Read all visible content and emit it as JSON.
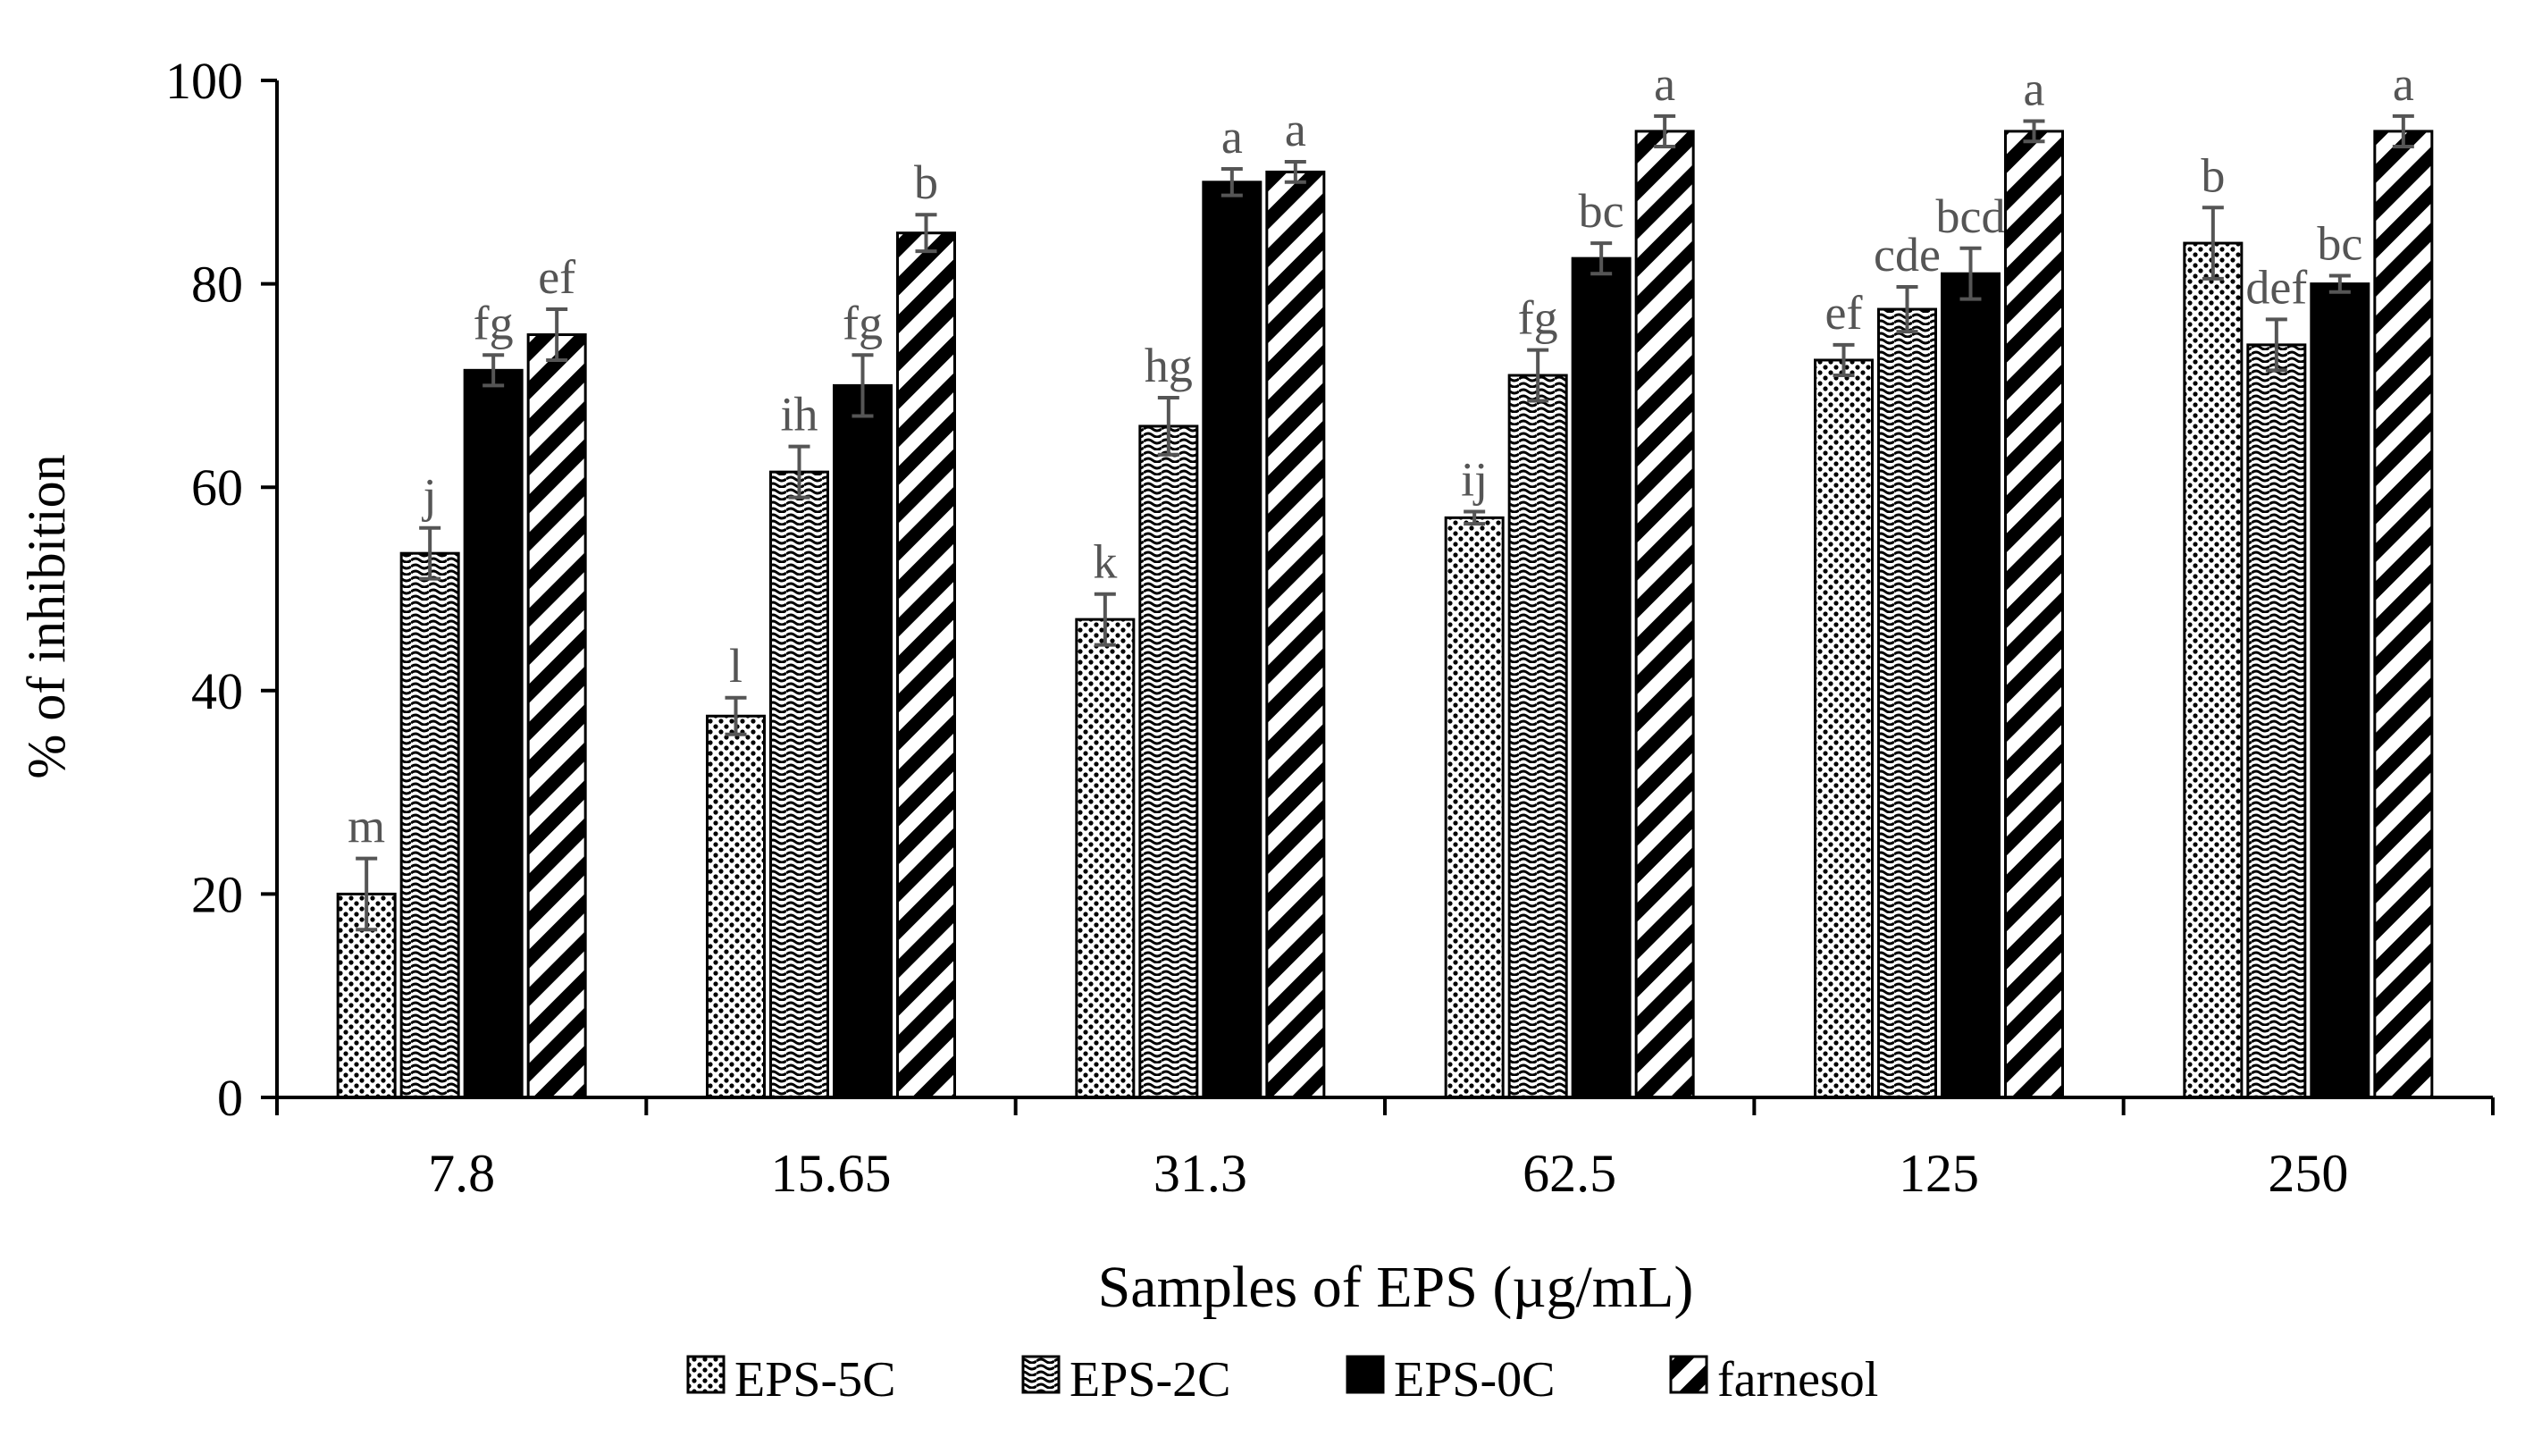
{
  "chart_data": {
    "type": "bar",
    "title": "",
    "xlabel": "Samples of EPS (µg/mL)",
    "ylabel": "% of inhibition",
    "ylim": [
      0,
      100
    ],
    "yticks": [
      0,
      20,
      40,
      60,
      80,
      100
    ],
    "grid": false,
    "legend_position": "bottom",
    "categories": [
      "7.8",
      "15.65",
      "31.3",
      "62.5",
      "125",
      "250"
    ],
    "series": [
      {
        "name": "EPS-5C",
        "pattern": "dots",
        "values": [
          20,
          37.5,
          47,
          57,
          72.5,
          84
        ],
        "errors": [
          3.5,
          1.8,
          2.5,
          0.6,
          1.5,
          3.5
        ],
        "letters": [
          "m",
          "l",
          "k",
          "ij",
          "ef",
          "b"
        ]
      },
      {
        "name": "EPS-2C",
        "pattern": "waves",
        "values": [
          53.5,
          61.5,
          66,
          71,
          77.5,
          74
        ],
        "errors": [
          2.5,
          2.5,
          2.8,
          2.5,
          2.2,
          2.5
        ],
        "letters": [
          "j",
          "ih",
          "hg",
          "fg",
          "cde",
          "def"
        ]
      },
      {
        "name": "EPS-0C",
        "pattern": "solid",
        "values": [
          71.5,
          70,
          90,
          82.5,
          81,
          80
        ],
        "errors": [
          1.5,
          3.0,
          1.3,
          1.5,
          2.5,
          0.8
        ],
        "letters": [
          "fg",
          "fg",
          "a",
          "bc",
          "bcd",
          "bc"
        ]
      },
      {
        "name": "farnesol",
        "pattern": "diagonal",
        "values": [
          75,
          85,
          91,
          95,
          95,
          95
        ],
        "errors": [
          2.5,
          1.8,
          1.0,
          1.5,
          1.0,
          1.5
        ],
        "letters": [
          "ef",
          "b",
          "a",
          "a",
          "a",
          "a"
        ]
      }
    ]
  },
  "colors": {
    "text": "#000000",
    "letter_text": "#555555",
    "error_bar": "#555555",
    "bar_fill": "#000000",
    "background": "#ffffff"
  }
}
